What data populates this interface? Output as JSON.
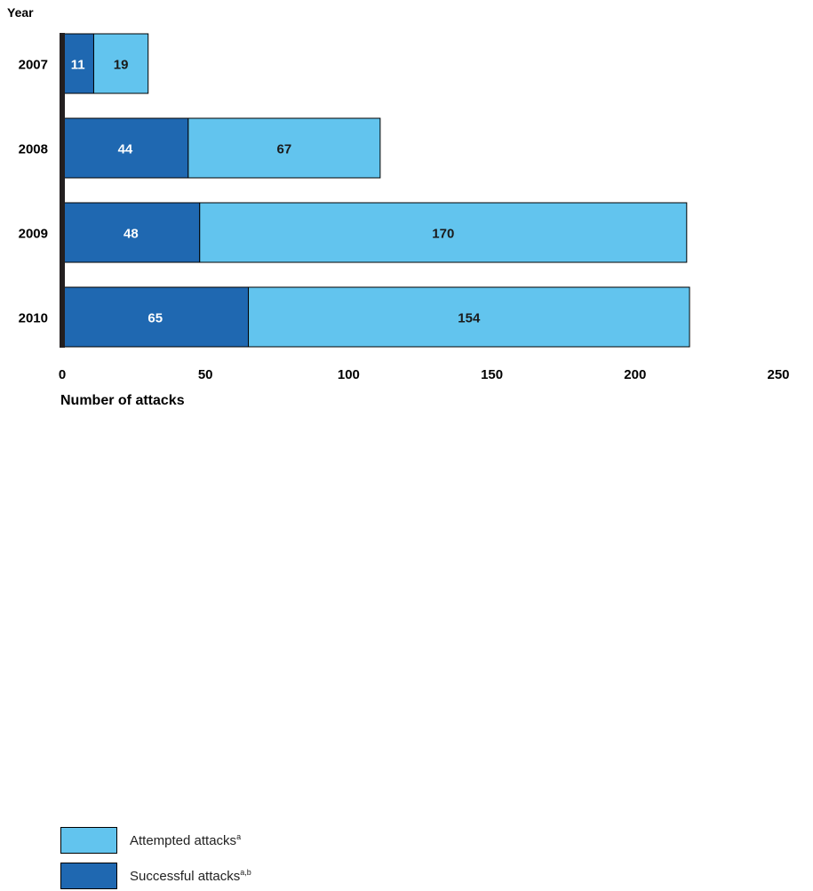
{
  "chart_data": {
    "type": "bar",
    "orientation": "horizontal",
    "stacked": true,
    "categories": [
      "2007",
      "2008",
      "2009",
      "2010"
    ],
    "series": [
      {
        "name": "Successful attacks",
        "name_superscript": "a,b",
        "color": "#1f68b1",
        "label_color": "#ffffff",
        "values": [
          11,
          44,
          48,
          65
        ]
      },
      {
        "name": "Attempted attacks",
        "name_superscript": "a",
        "color": "#62c4ee",
        "label_color": "#1a1a1a",
        "values": [
          19,
          67,
          170,
          154
        ]
      }
    ],
    "xlabel": "Number of attacks",
    "ylabel": "Year",
    "xlim": [
      0,
      250
    ],
    "xticks": [
      "0",
      "50",
      "100",
      "150",
      "200",
      "250"
    ],
    "grid": false,
    "legend_position": "bottom-left"
  }
}
